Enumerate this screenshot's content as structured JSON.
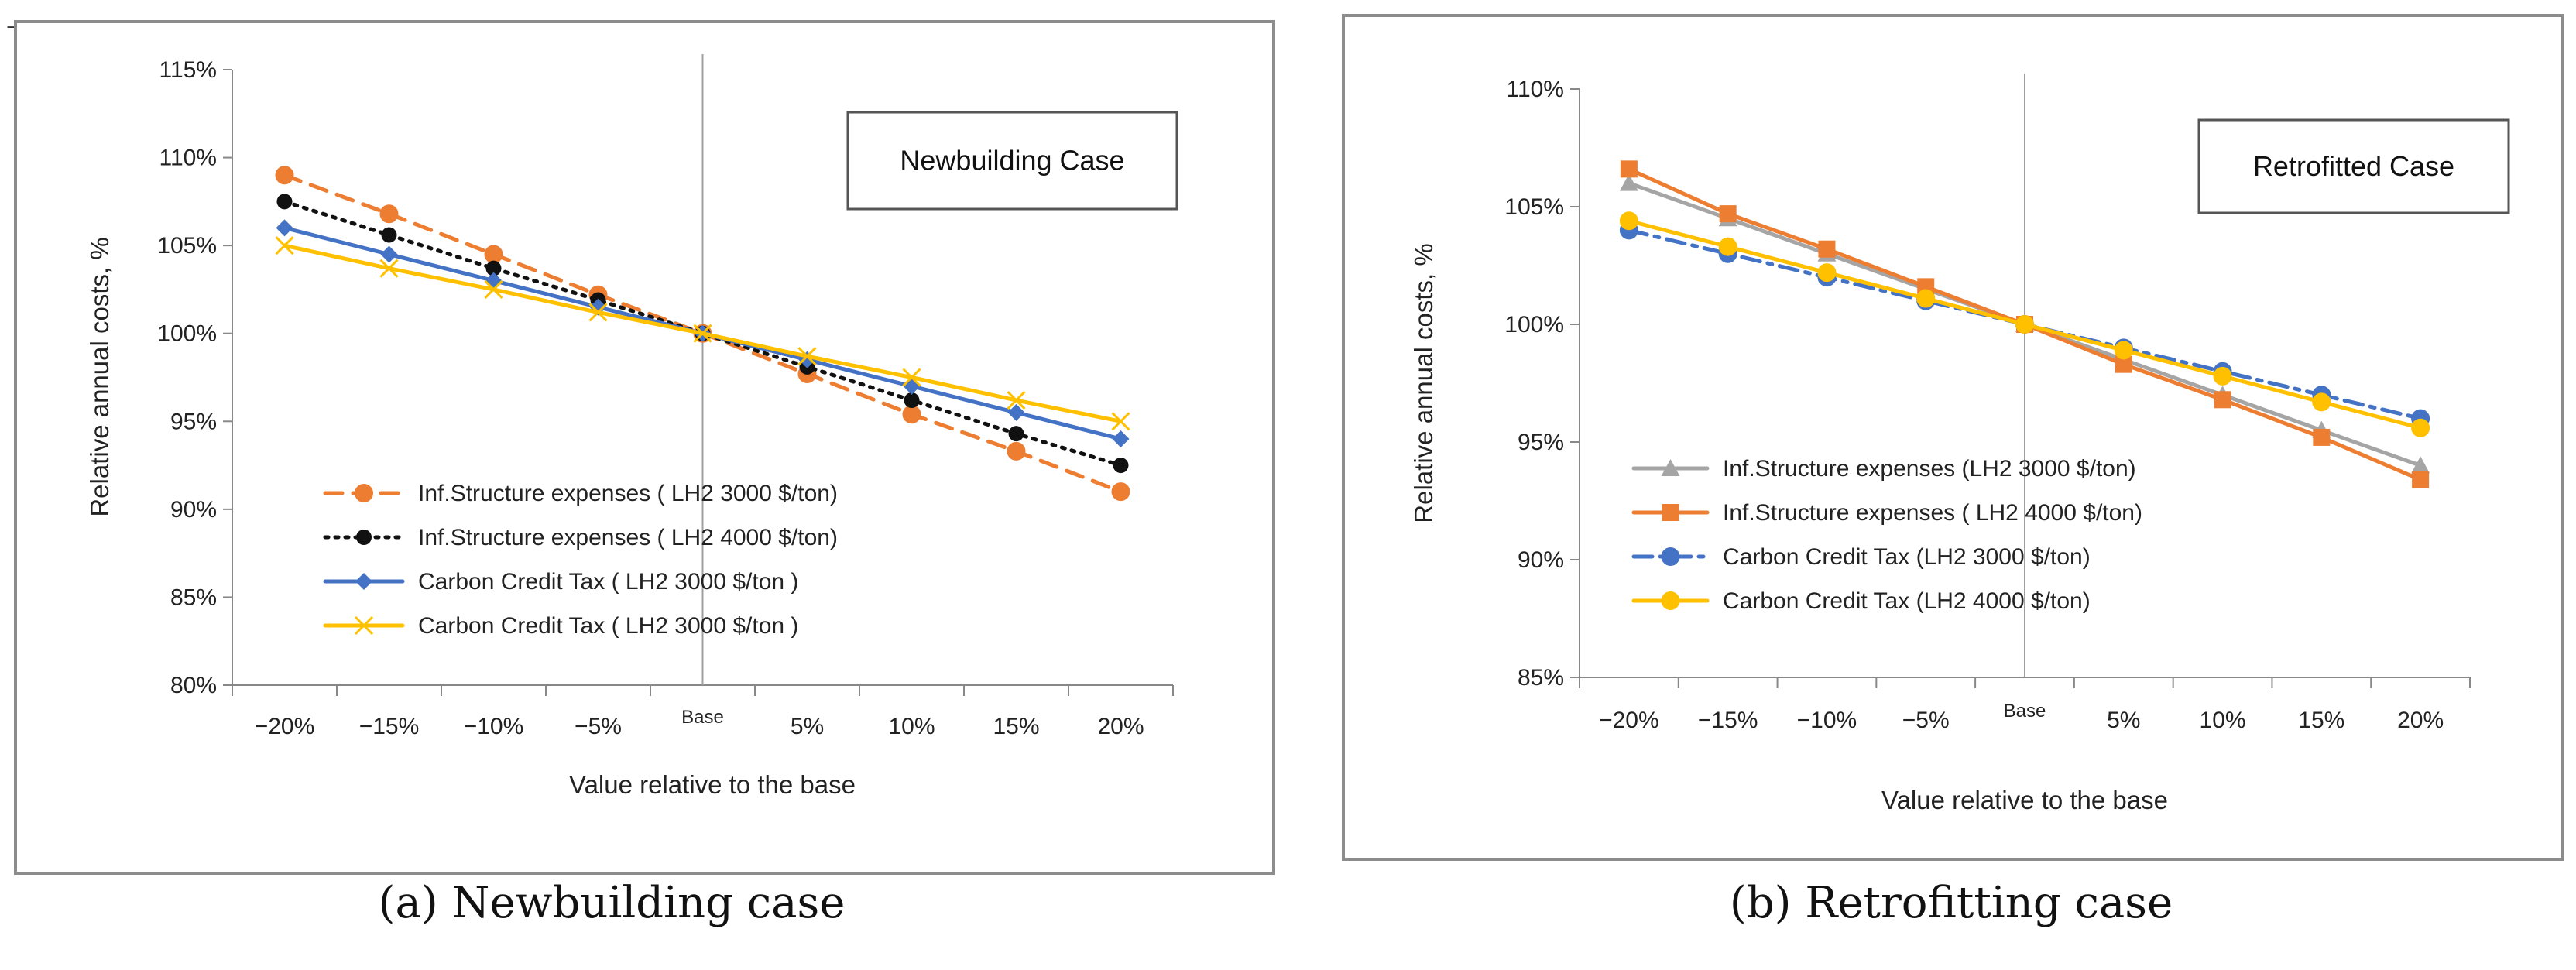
{
  "top_mark": "_",
  "panels": [
    {
      "caption": "(a) Newbuilding case",
      "case_label": "Newbuilding Case"
    },
    {
      "caption": "(b) Retrofitting case",
      "case_label": "Retrofitted Case"
    }
  ],
  "chart_data": [
    {
      "type": "line",
      "title": "Newbuilding Case",
      "xlabel": "Value relative to the base",
      "ylabel": "Relative annual costs, %",
      "categories": [
        "−20%",
        "−15%",
        "−10%",
        "−5%",
        "Base",
        "5%",
        "10%",
        "15%",
        "20%"
      ],
      "ylim": [
        80,
        115
      ],
      "yticks": [
        80,
        85,
        90,
        95,
        100,
        105,
        110,
        115
      ],
      "ytick_labels": [
        "80%",
        "85%",
        "90%",
        "95%",
        "100%",
        "105%",
        "110%",
        "115%"
      ],
      "legend_position": "bottom-left",
      "series": [
        {
          "name": "Inf.Structure expenses ( LH2 3000 $/ton)",
          "color": "#ED7D31",
          "style": "dashed",
          "marker": "circle",
          "values": [
            109,
            106.8,
            104.5,
            102.2,
            100,
            97.7,
            95.4,
            93.3,
            91
          ]
        },
        {
          "name": "Inf.Structure expenses ( LH2 4000 $/ton)",
          "color": "#111111",
          "style": "dotted",
          "marker": "circle-black",
          "values": [
            107.5,
            105.6,
            103.7,
            101.9,
            100,
            98.1,
            96.2,
            94.3,
            92.5
          ]
        },
        {
          "name": "Carbon Credit Tax ( LH2 3000 $/ton )",
          "color": "#4472C4",
          "style": "solid",
          "marker": "diamond",
          "values": [
            106,
            104.5,
            103,
            101.5,
            100,
            98.5,
            97,
            95.5,
            94
          ]
        },
        {
          "name": "Carbon Credit Tax  ( LH2 3000 $/ton )",
          "color": "#FFC000",
          "style": "solid",
          "marker": "x",
          "values": [
            105,
            103.7,
            102.5,
            101.2,
            100,
            98.7,
            97.5,
            96.2,
            95
          ]
        }
      ]
    },
    {
      "type": "line",
      "title": "Retrofitted Case",
      "xlabel": "Value relative to the base",
      "ylabel": "Relative annual costs, %",
      "categories": [
        "−20%",
        "−15%",
        "−10%",
        "−5%",
        "Base",
        "5%",
        "10%",
        "15%",
        "20%"
      ],
      "ylim": [
        85,
        110
      ],
      "yticks": [
        85,
        90,
        95,
        100,
        105,
        110
      ],
      "ytick_labels": [
        "85%",
        "90%",
        "95%",
        "100%",
        "105%",
        "110%"
      ],
      "legend_position": "bottom-left",
      "series": [
        {
          "name": "Inf.Structure expenses (LH2 3000 $/ton)",
          "color": "#A5A5A5",
          "style": "solid",
          "marker": "triangle",
          "values": [
            106,
            104.5,
            103,
            101.5,
            100,
            98.5,
            97,
            95.5,
            94
          ]
        },
        {
          "name": "Inf.Structure expenses ( LH2 4000 $/ton)",
          "color": "#ED7D31",
          "style": "solid",
          "marker": "square",
          "values": [
            106.6,
            104.7,
            103.2,
            101.6,
            100,
            98.3,
            96.8,
            95.2,
            93.4
          ]
        },
        {
          "name": "Carbon Credit Tax (LH2 3000 $/ton)",
          "color": "#4472C4",
          "style": "dashdot",
          "marker": "circle",
          "values": [
            104,
            103,
            102,
            101,
            100,
            99,
            98,
            97,
            96
          ]
        },
        {
          "name": "Carbon Credit Tax  (LH2 4000 $/ton)",
          "color": "#FFC000",
          "style": "solid",
          "marker": "circle",
          "values": [
            104.4,
            103.3,
            102.2,
            101.1,
            100,
            98.9,
            97.8,
            96.7,
            95.6
          ]
        }
      ]
    }
  ]
}
